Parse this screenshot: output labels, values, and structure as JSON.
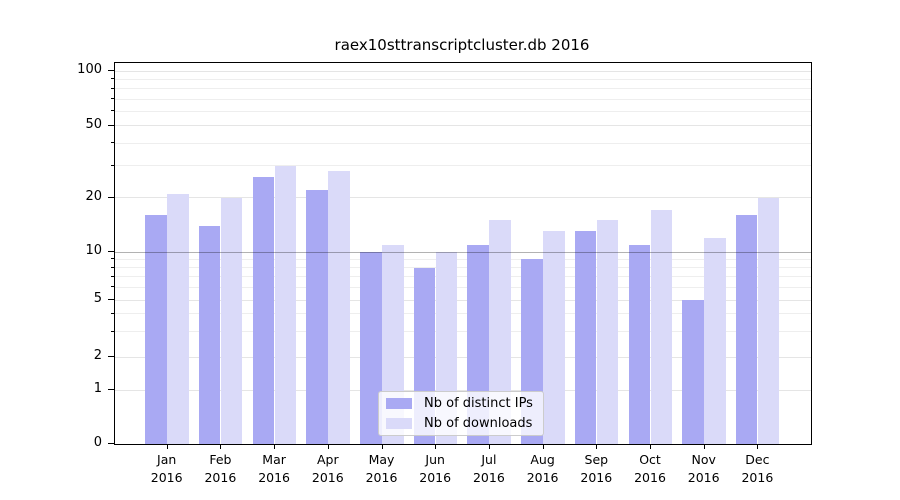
{
  "title": "raex10sttranscriptcluster.db 2016",
  "chart_data": {
    "type": "bar",
    "title": "raex10sttranscriptcluster.db 2016",
    "categories": [
      "Jan 2016",
      "Feb 2016",
      "Mar 2016",
      "Apr 2016",
      "May 2016",
      "Jun 2016",
      "Jul 2016",
      "Aug 2016",
      "Sep 2016",
      "Oct 2016",
      "Nov 2016",
      "Dec 2016"
    ],
    "month_labels": [
      "Jan",
      "Feb",
      "Mar",
      "Apr",
      "May",
      "Jun",
      "Jul",
      "Aug",
      "Sep",
      "Oct",
      "Nov",
      "Dec"
    ],
    "year_label": "2016",
    "series": [
      {
        "name": "Nb of distinct IPs",
        "color": "#a9a9f3",
        "values": [
          16,
          14,
          26,
          22,
          10,
          8,
          11,
          9,
          13,
          11,
          5,
          16
        ]
      },
      {
        "name": "Nb of downloads",
        "color": "#dadaf9",
        "values": [
          21,
          20,
          30,
          28,
          11,
          10,
          15,
          13,
          15,
          17,
          12,
          20
        ]
      }
    ],
    "y_ticks": [
      100,
      50,
      20,
      10,
      5,
      2,
      1,
      0
    ],
    "y_tick_labels": [
      "100",
      "50",
      "20",
      "10",
      "5",
      "2",
      "1",
      "0"
    ],
    "y_minor_ticks": [
      3,
      4,
      6,
      7,
      8,
      9,
      30,
      40,
      60,
      70,
      80,
      90
    ],
    "ylim": [
      0,
      110
    ],
    "y_scale": "log-like (symlog, majors at 0,1,2,5,10,20,50,100)",
    "grid": true,
    "legend_position": "inside-bottom-center"
  },
  "colors": {
    "bar_distinct_ips": "#a9a9f3",
    "bar_downloads": "#dadaf9",
    "gridline_minor": "#efefef",
    "gridline_major": "#e6e6e6",
    "gridline_ten": "#b3b3b3",
    "axis": "#000000",
    "background": "#ffffff"
  }
}
